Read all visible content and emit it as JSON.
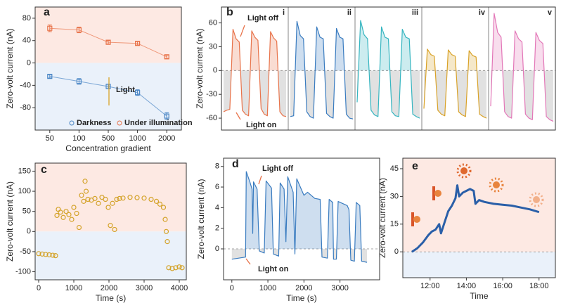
{
  "chart_data": [
    {
      "type": "scatter",
      "label": "a",
      "xlabel": "Concentration gradient",
      "ylabel": "Zero-volt current (nA)",
      "categories": [
        "50",
        "100",
        "500",
        "1000",
        "2000"
      ],
      "series": [
        {
          "name": "Darkness",
          "color": "#4a86c5",
          "values": [
            -24,
            -33,
            -42,
            -53,
            -95
          ],
          "errors": [
            3,
            5,
            4,
            5,
            6
          ]
        },
        {
          "name": "Under illumination",
          "color": "#e8734a",
          "values": [
            62,
            59,
            37,
            35,
            11
          ],
          "errors": [
            6,
            5,
            3,
            3,
            3
          ]
        }
      ],
      "ylim": [
        -120,
        100
      ],
      "yticks": [
        -80,
        -40,
        0,
        40,
        80
      ],
      "background": {
        "positive": "#fde9e3",
        "negative": "#eaf1fa"
      },
      "annotations": [
        "Light"
      ],
      "legend": "bottom"
    },
    {
      "type": "line",
      "label": "b",
      "ylabel": "Zero-volt current (nA)",
      "series": [
        {
          "name": "i",
          "color": "#e8734a",
          "values": [
            -52,
            -50,
            -49,
            52,
            40,
            36,
            -50,
            -55,
            -57,
            50,
            42,
            38,
            -48,
            -55,
            -57,
            49,
            41,
            37,
            -52,
            -57,
            -58
          ]
        },
        {
          "name": "ii",
          "color": "#3a7cc0",
          "values": [
            -58,
            -57,
            62,
            44,
            40,
            -52,
            -58,
            -60,
            55,
            42,
            40,
            -54,
            -58,
            -60,
            53,
            42,
            40,
            -55,
            -60,
            -61
          ]
        },
        {
          "name": "iii",
          "color": "#35b5c0",
          "values": [
            -40,
            63,
            45,
            40,
            -50,
            -56,
            -58,
            55,
            42,
            40,
            -52,
            -57,
            -58,
            52,
            42,
            40,
            -55,
            -58,
            -60
          ]
        },
        {
          "name": "iv",
          "color": "#d9a227",
          "values": [
            -48,
            27,
            20,
            18,
            -50,
            -55,
            -57,
            26,
            20,
            18,
            -52,
            -56,
            -58,
            25,
            19,
            17,
            -55,
            -58,
            -60
          ]
        },
        {
          "name": "v",
          "color": "#e377b8",
          "values": [
            -45,
            72,
            48,
            42,
            -52,
            -58,
            -60,
            50,
            40,
            36,
            -55,
            -60,
            -62,
            48,
            38,
            34,
            -58,
            -62,
            -64
          ]
        }
      ],
      "ylim": [
        -75,
        80
      ],
      "yticks": [
        -60,
        -30,
        0,
        30,
        60
      ],
      "annotations": [
        "Light off",
        "Light on"
      ]
    },
    {
      "type": "scatter",
      "label": "c",
      "xlabel": "Time (s)",
      "ylabel": "Zero-volt current (nA)",
      "series": [
        {
          "name": null,
          "color": "#d4a32a",
          "x": [
            0,
            100,
            200,
            300,
            400,
            480,
            520,
            560,
            620,
            700,
            780,
            860,
            940,
            1000,
            1080,
            1150,
            1220,
            1280,
            1320,
            1350,
            1400,
            1500,
            1600,
            1700,
            1800,
            1900,
            1980,
            2040,
            2100,
            2160,
            2220,
            2300,
            2400,
            2600,
            2800,
            3000,
            3200,
            3350,
            3450,
            3550,
            3600,
            3630,
            3660,
            3700,
            3800,
            3900,
            4000,
            4080
          ],
          "values": [
            -55,
            -56,
            -57,
            -58,
            -59,
            -60,
            40,
            55,
            48,
            35,
            50,
            42,
            30,
            60,
            45,
            10,
            90,
            75,
            125,
            100,
            80,
            78,
            82,
            70,
            85,
            80,
            60,
            15,
            70,
            5,
            80,
            82,
            83,
            85,
            84,
            83,
            80,
            75,
            68,
            60,
            30,
            0,
            -25,
            -90,
            -92,
            -90,
            -88,
            -90
          ]
        }
      ],
      "xlim": [
        -100,
        4200
      ],
      "xticks": [
        0,
        1000,
        2000,
        3000,
        4000
      ],
      "ylim": [
        -120,
        170
      ],
      "yticks": [
        -100,
        -50,
        0,
        50,
        100,
        150
      ],
      "background": {
        "positive": "#fde9e3",
        "negative": "#eaf1fa"
      }
    },
    {
      "type": "line",
      "label": "d",
      "xlabel": "Time (s)",
      "ylabel": "Zero-volt current (nA)",
      "series": [
        {
          "name": null,
          "color": "#3a7cc0",
          "x": [
            0,
            380,
            400,
            500,
            560,
            580,
            600,
            700,
            760,
            900,
            950,
            1100,
            1150,
            1300,
            1340,
            1450,
            1500,
            1550,
            1700,
            1750,
            1800,
            2000,
            2100,
            2300,
            2450,
            2500,
            2650,
            2700,
            2800,
            2820,
            2900,
            2950,
            3200,
            3250,
            3300,
            3400,
            3450,
            3550,
            3600,
            3750
          ],
          "values": [
            -1,
            -0.8,
            7.5,
            6.5,
            5.8,
            1.5,
            6.5,
            5.8,
            -0.2,
            -0.4,
            6.6,
            5.9,
            -0.5,
            -0.7,
            6.4,
            5.8,
            0.7,
            7,
            5.5,
            -0.5,
            6.8,
            5.2,
            5.5,
            4.9,
            4.8,
            -0.8,
            -0.9,
            4.8,
            4.5,
            -1,
            -1,
            4.6,
            4.2,
            3.8,
            -1.1,
            -1.2,
            4.5,
            4.2,
            -1.2,
            -1.3
          ]
        }
      ],
      "xlim": [
        -230,
        4100
      ],
      "xticks": [
        0,
        1000,
        2000,
        3000
      ],
      "ylim": [
        -3,
        8.8
      ],
      "yticks": [
        0,
        2,
        4,
        6,
        8
      ],
      "annotations": [
        "Light off",
        "Light on"
      ]
    },
    {
      "type": "line",
      "label": "e",
      "xlabel": "Time",
      "ylabel": "Zero-volt current (nA)",
      "series": [
        {
          "name": null,
          "color": "#2a5fa8",
          "x": [
            11.0,
            11.3,
            11.6,
            11.9,
            12.1,
            12.3,
            12.5,
            12.6,
            12.8,
            13.0,
            13.2,
            13.4,
            13.5,
            13.6,
            13.8,
            14.0,
            14.2,
            14.4,
            14.5,
            14.7,
            15.0,
            15.5,
            16.0,
            16.5,
            17.0,
            17.5,
            18.0
          ],
          "values": [
            0,
            2,
            5,
            9,
            11,
            12,
            15,
            10,
            16,
            22,
            25,
            29,
            36,
            30,
            32,
            33,
            34,
            33,
            26,
            28,
            27,
            26,
            25.5,
            25,
            24,
            23,
            21.5
          ]
        }
      ],
      "xlim": [
        10.5,
        18.9
      ],
      "xticks": [
        {
          "value": 12,
          "label": "12:00"
        },
        {
          "value": 14,
          "label": "14:00"
        },
        {
          "value": 16,
          "label": "16:00"
        },
        {
          "value": 18,
          "label": "18:00"
        }
      ],
      "ylim": [
        -14,
        50.7
      ],
      "yticks": [
        0,
        15,
        30,
        45
      ],
      "background": {
        "positive": "#fde9e3",
        "negative": "#eaf1fa"
      }
    }
  ]
}
